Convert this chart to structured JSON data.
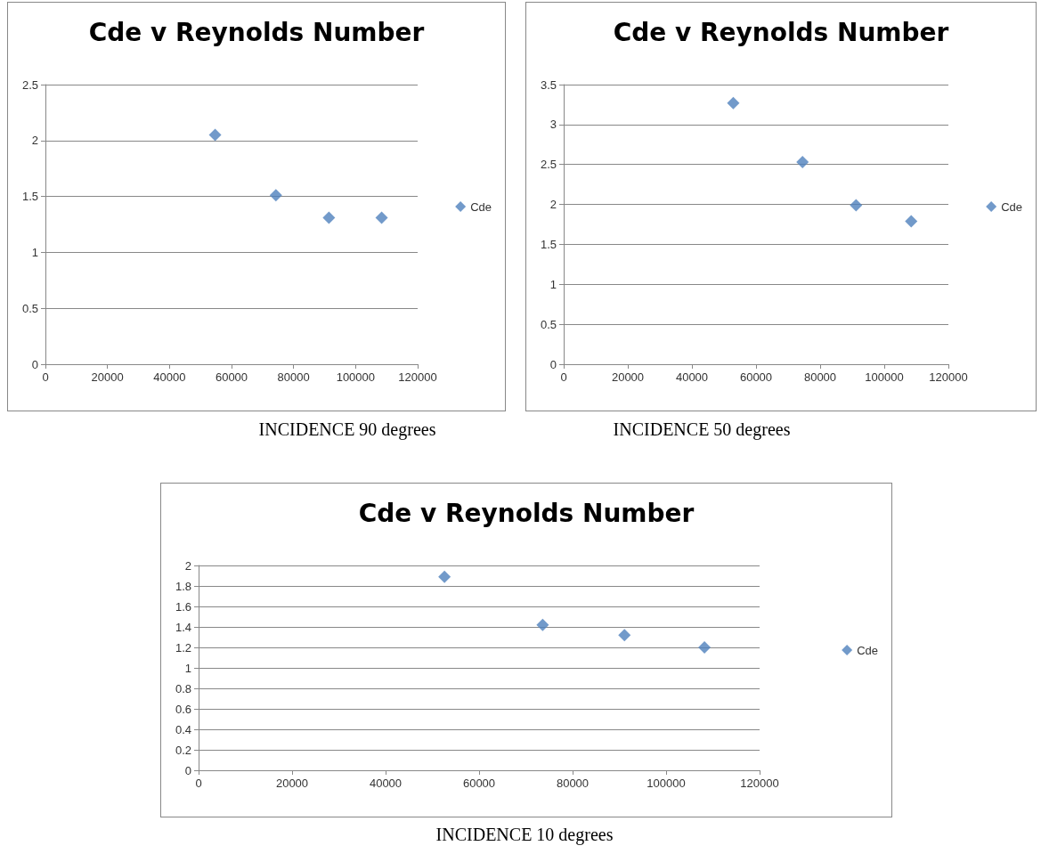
{
  "chart_data": [
    {
      "type": "scatter",
      "title": "Cde v Reynolds Number",
      "x": [
        54700,
        74300,
        91400,
        108400
      ],
      "series": [
        {
          "name": "Cde",
          "color": "#4f81bd",
          "values": [
            2.05,
            1.51,
            1.31,
            1.31
          ]
        }
      ],
      "xlim": [
        0,
        120000
      ],
      "xticks": [
        0,
        20000,
        40000,
        60000,
        80000,
        100000,
        120000
      ],
      "ylim": [
        0,
        2.5
      ],
      "yticks": [
        0,
        0.5,
        1,
        1.5,
        2,
        2.5
      ],
      "grid": "y",
      "legend": "right",
      "marker": "diamond",
      "annotations": [
        "INCIDENCE 90 degrees"
      ]
    },
    {
      "type": "scatter",
      "title": "Cde v Reynolds Number",
      "x": [
        52900,
        74500,
        91200,
        108400
      ],
      "series": [
        {
          "name": "Cde",
          "color": "#4f81bd",
          "values": [
            3.27,
            2.53,
            1.99,
            1.79
          ]
        }
      ],
      "xlim": [
        0,
        120000
      ],
      "xticks": [
        0,
        20000,
        40000,
        60000,
        80000,
        100000,
        120000
      ],
      "ylim": [
        0,
        3.5
      ],
      "yticks": [
        0,
        0.5,
        1,
        1.5,
        2,
        2.5,
        3,
        3.5
      ],
      "grid": "y",
      "legend": "right",
      "marker": "diamond",
      "annotations": [
        "INCIDENCE 50 degrees"
      ]
    },
    {
      "type": "scatter",
      "title": "Cde v Reynolds Number",
      "x": [
        52600,
        73600,
        91100,
        108200
      ],
      "series": [
        {
          "name": "Cde",
          "color": "#4f81bd",
          "values": [
            1.89,
            1.42,
            1.32,
            1.2
          ]
        }
      ],
      "xlim": [
        0,
        120000
      ],
      "xticks": [
        0,
        20000,
        40000,
        60000,
        80000,
        100000,
        120000
      ],
      "ylim": [
        0,
        2
      ],
      "yticks": [
        0,
        0.2,
        0.4,
        0.6,
        0.8,
        1,
        1.2,
        1.4,
        1.6,
        1.8,
        2
      ],
      "grid": "y",
      "legend": "right",
      "marker": "diamond",
      "annotations": [
        "INCIDENCE 10 degrees"
      ]
    }
  ]
}
